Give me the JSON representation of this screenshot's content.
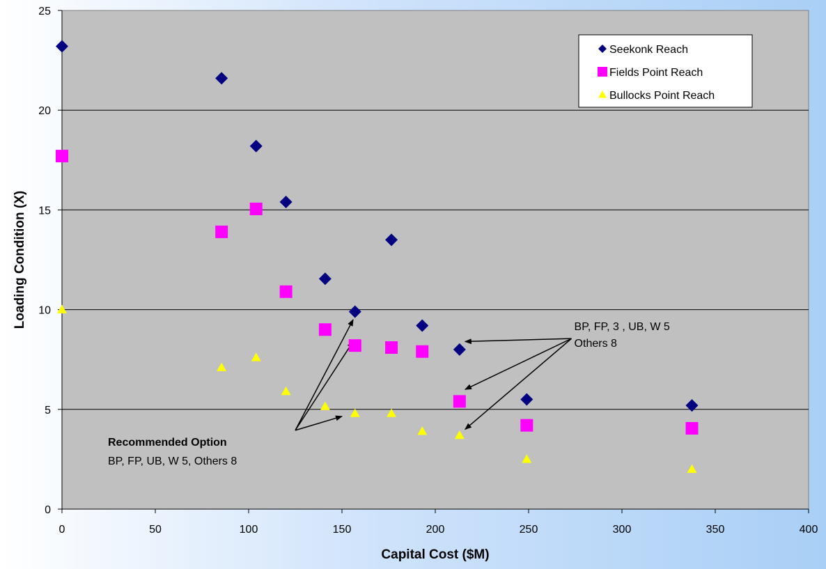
{
  "chart_data": {
    "type": "scatter",
    "title": "",
    "xlabel": "Capital Cost ($M)",
    "ylabel": "Loading Condition (X)",
    "xlim": [
      0,
      400
    ],
    "ylim": [
      0,
      25
    ],
    "xticks": [
      0,
      50,
      100,
      150,
      200,
      250,
      300,
      350,
      400
    ],
    "yticks": [
      0,
      5,
      10,
      15,
      20,
      25
    ],
    "grid": "horizontal",
    "legend_position": "top-right",
    "series": [
      {
        "name": "Seekonk Reach",
        "marker": "diamond",
        "color": "#000080",
        "points": [
          [
            0,
            23.2
          ],
          [
            85.5,
            21.6
          ],
          [
            104,
            18.2
          ],
          [
            120,
            15.4
          ],
          [
            141,
            11.55
          ],
          [
            157,
            9.9
          ],
          [
            176.5,
            13.5
          ],
          [
            193,
            9.2
          ],
          [
            213,
            8.0
          ],
          [
            249,
            5.5
          ],
          [
            337.5,
            5.2
          ]
        ]
      },
      {
        "name": "Fields Point Reach",
        "marker": "square",
        "color": "#ff00ff",
        "points": [
          [
            0,
            17.7
          ],
          [
            85.5,
            13.9
          ],
          [
            104,
            15.05
          ],
          [
            120,
            10.9
          ],
          [
            141,
            9.0
          ],
          [
            157,
            8.2
          ],
          [
            176.5,
            8.1
          ],
          [
            193,
            7.9
          ],
          [
            213,
            5.4
          ],
          [
            249,
            4.2
          ],
          [
            337.5,
            4.05
          ]
        ]
      },
      {
        "name": "Bullocks Point Reach",
        "marker": "triangle",
        "color": "#ffff00",
        "points": [
          [
            0,
            10.0
          ],
          [
            85.5,
            7.1
          ],
          [
            104,
            7.6
          ],
          [
            120,
            5.9
          ],
          [
            141,
            5.15
          ],
          [
            157,
            4.8
          ],
          [
            176.5,
            4.8
          ],
          [
            193,
            3.9
          ],
          [
            213,
            3.7
          ],
          [
            249,
            2.5
          ],
          [
            337.5,
            2.0
          ]
        ]
      }
    ],
    "annotations": [
      {
        "lines": [
          "BP, FP, 3 , UB, W 5",
          "Others 8"
        ],
        "text_anchor_data": [
          267,
          8.9
        ],
        "arrows_from_data": [
          267,
          8.55
        ],
        "arrows_to_data": [
          [
            213,
            8.4
          ],
          [
            213,
            6.0
          ],
          [
            213,
            4.0
          ]
        ]
      },
      {
        "title": "Recommended Option",
        "subtitle": "BP, FP, UB, W 5, Others 8",
        "arrows_from_data": [
          125,
          3.95
        ],
        "arrows_to_data": [
          [
            156,
            9.5
          ],
          [
            156,
            8.4
          ],
          [
            150,
            4.65
          ]
        ]
      }
    ]
  }
}
